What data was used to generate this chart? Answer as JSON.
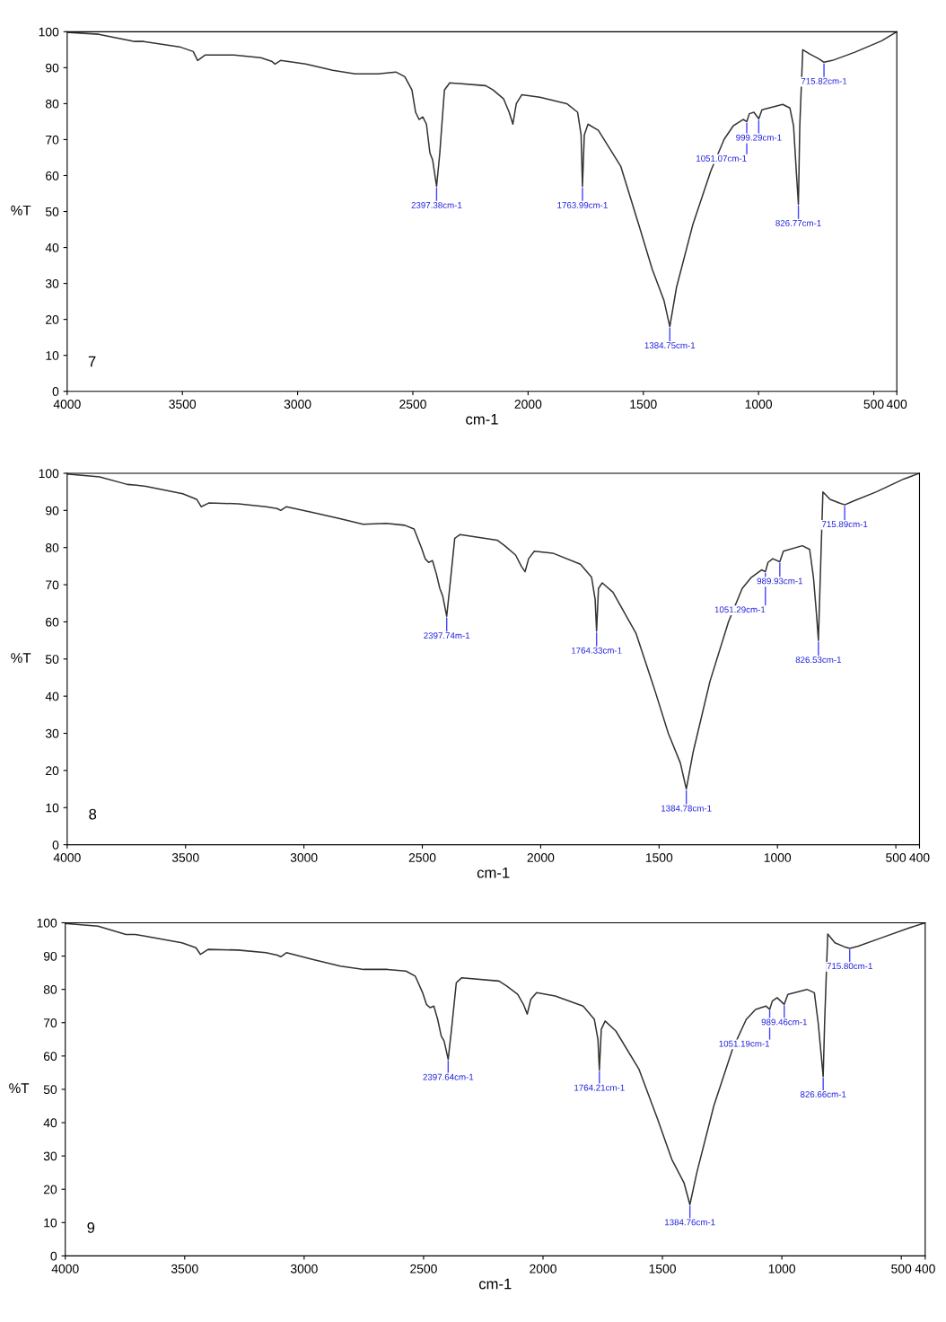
{
  "chart_data": [
    {
      "type": "line",
      "xlabel": "cm-1",
      "ylabel": "%T",
      "xlim": [
        4000,
        400
      ],
      "ylim": [
        0,
        100
      ],
      "xticks": [
        4000,
        3500,
        3000,
        2500,
        2000,
        1500,
        1000,
        500,
        400
      ],
      "yticks": [
        0,
        10,
        20,
        30,
        40,
        50,
        60,
        70,
        80,
        90,
        100
      ],
      "grid": false,
      "legend": false,
      "series": [
        {
          "color": "#333333",
          "x": [
            4000,
            3863,
            3746,
            3707,
            3668,
            3512,
            3453,
            3434,
            3402,
            3277,
            3160,
            3113,
            3098,
            3074,
            2965,
            2848,
            2750,
            2652,
            2574,
            2535,
            2504,
            2488,
            2473,
            2457,
            2441,
            2426,
            2414,
            2397,
            2383,
            2363,
            2340,
            2184,
            2152,
            2106,
            2082,
            2066,
            2051,
            2027,
            1949,
            1832,
            1785,
            1770,
            1764,
            1756,
            1740,
            1695,
            1598,
            1520,
            1461,
            1410,
            1385,
            1356,
            1285,
            1207,
            1149,
            1110,
            1067,
            1051,
            1040,
            1020,
            999,
            985,
            895,
            864,
            848,
            835,
            827,
            821,
            808,
            778,
            739,
            716,
            680,
            582,
            465,
            400
          ],
          "values": [
            99.8,
            99.3,
            97.8,
            97.3,
            97.3,
            95.8,
            94.5,
            92.0,
            93.5,
            93.5,
            92.8,
            91.8,
            91.0,
            92.0,
            91.0,
            89.3,
            88.3,
            88.3,
            88.8,
            87.5,
            83.8,
            77.6,
            75.6,
            76.3,
            74.3,
            66.3,
            64.3,
            57,
            66.3,
            83.8,
            85.8,
            85.0,
            83.8,
            81.3,
            77.6,
            74.3,
            80.0,
            82.5,
            81.8,
            80.0,
            77.6,
            71.3,
            57,
            71.3,
            74.3,
            72.6,
            62.6,
            46.4,
            33.9,
            25.2,
            18,
            28.9,
            46.4,
            61.3,
            70.1,
            73.8,
            75.6,
            75.0,
            77.2,
            77.6,
            75.8,
            78.3,
            79.8,
            78.8,
            73.8,
            60,
            52,
            73.8,
            95.0,
            93.8,
            92.5,
            91.5,
            92.0,
            94.3,
            97.5,
            100
          ]
        }
      ],
      "annotations": [
        {
          "text": "2397.38cm-1",
          "x": 2397,
          "y": 57
        },
        {
          "text": "1763.99cm-1",
          "x": 1764,
          "y": 57
        },
        {
          "text": "1384.75cm-1",
          "x": 1385,
          "y": 18
        },
        {
          "text": "1051.07cm-1",
          "x": 1051,
          "y": 75
        },
        {
          "text": "999.29cm-1",
          "x": 999,
          "y": 75.8
        },
        {
          "text": "826.77cm-1",
          "x": 827,
          "y": 52
        },
        {
          "text": "715.82cm-1",
          "x": 716,
          "y": 91.5
        },
        "7"
      ]
    },
    {
      "type": "line",
      "xlabel": "cm-1",
      "ylabel": "%T",
      "xlim": [
        4000,
        400
      ],
      "ylim": [
        0,
        100
      ],
      "xticks": [
        4000,
        3500,
        3000,
        2500,
        2000,
        1500,
        1000,
        500,
        400
      ],
      "yticks": [
        0,
        10,
        20,
        30,
        40,
        50,
        60,
        70,
        80,
        90,
        100
      ],
      "grid": false,
      "legend": false,
      "series": [
        {
          "color": "#333333",
          "x": [
            4000,
            3863,
            3746,
            3707,
            3668,
            3512,
            3453,
            3434,
            3402,
            3277,
            3160,
            3113,
            3098,
            3074,
            2965,
            2848,
            2750,
            2652,
            2574,
            2535,
            2504,
            2488,
            2473,
            2457,
            2441,
            2426,
            2414,
            2397,
            2383,
            2363,
            2340,
            2184,
            2152,
            2106,
            2082,
            2066,
            2051,
            2027,
            1949,
            1832,
            1785,
            1770,
            1764,
            1756,
            1740,
            1695,
            1598,
            1520,
            1461,
            1410,
            1385,
            1356,
            1285,
            1207,
            1149,
            1110,
            1067,
            1051,
            1040,
            1020,
            990,
            975,
            895,
            864,
            848,
            835,
            827,
            821,
            808,
            778,
            739,
            716,
            680,
            582,
            465,
            400
          ],
          "values": [
            99.8,
            99,
            97,
            96.8,
            96.5,
            94.5,
            93,
            91,
            92,
            91.8,
            91,
            90.5,
            90,
            91,
            89.5,
            87.8,
            86.3,
            86.5,
            86,
            85,
            80,
            77,
            76.0,
            76.5,
            73,
            69,
            67,
            61.5,
            70,
            82.5,
            83.5,
            82,
            80.5,
            78,
            75,
            73.5,
            77,
            79,
            78.5,
            75.5,
            72,
            66,
            57.5,
            69,
            70.5,
            68,
            57,
            42,
            30,
            22,
            15,
            25,
            44,
            60,
            69,
            72,
            74,
            73.5,
            76,
            77,
            76.2,
            79,
            80.5,
            79.5,
            72,
            62,
            55,
            68,
            95.0,
            93,
            92,
            91.5,
            92.5,
            95,
            98.5,
            100
          ]
        }
      ],
      "annotations": [
        {
          "text": "2397.74m-1",
          "x": 2397,
          "y": 61.5
        },
        {
          "text": "1764.33cm-1",
          "x": 1764,
          "y": 57.5
        },
        {
          "text": "1384.78cm-1",
          "x": 1385,
          "y": 15
        },
        {
          "text": "1051.29cm-1",
          "x": 1051,
          "y": 73.5
        },
        {
          "text": "989.93cm-1",
          "x": 990,
          "y": 76.2
        },
        {
          "text": "826.53cm-1",
          "x": 827,
          "y": 55
        },
        {
          "text": "715.89cm-1",
          "x": 716,
          "y": 91.5
        },
        "8"
      ]
    },
    {
      "type": "line",
      "xlabel": "cm-1",
      "ylabel": "%T",
      "xlim": [
        4000,
        400
      ],
      "ylim": [
        0,
        100
      ],
      "xticks": [
        4000,
        3500,
        3000,
        2500,
        2000,
        1500,
        1000,
        500,
        400
      ],
      "yticks": [
        0,
        10,
        20,
        30,
        40,
        50,
        60,
        70,
        80,
        90,
        100
      ],
      "grid": false,
      "legend": false,
      "series": [
        {
          "color": "#333333",
          "x": [
            4000,
            3863,
            3746,
            3707,
            3668,
            3512,
            3453,
            3434,
            3402,
            3277,
            3160,
            3113,
            3098,
            3074,
            2965,
            2848,
            2750,
            2652,
            2574,
            2535,
            2504,
            2488,
            2473,
            2457,
            2441,
            2426,
            2414,
            2397,
            2383,
            2363,
            2340,
            2184,
            2152,
            2106,
            2082,
            2066,
            2051,
            2027,
            1949,
            1832,
            1785,
            1770,
            1764,
            1756,
            1740,
            1695,
            1598,
            1520,
            1461,
            1410,
            1385,
            1356,
            1285,
            1207,
            1149,
            1110,
            1067,
            1051,
            1040,
            1020,
            990,
            975,
            895,
            864,
            848,
            835,
            827,
            821,
            808,
            778,
            739,
            716,
            680,
            582,
            465,
            400
          ],
          "values": [
            99.8,
            99,
            96.5,
            96.5,
            96,
            94,
            92.5,
            90.5,
            92,
            91.8,
            91,
            90.3,
            89.8,
            91,
            89,
            87,
            86,
            86,
            85.5,
            84,
            79,
            75.5,
            74.5,
            75,
            71,
            66,
            64.5,
            59,
            68,
            82,
            83.5,
            82.5,
            81,
            78.5,
            75.5,
            72.6,
            77,
            79,
            78,
            75,
            71,
            65,
            55.8,
            68,
            70.5,
            67.5,
            56,
            41,
            29,
            22,
            15.4,
            25,
            45,
            62,
            71,
            74,
            75,
            74,
            76.5,
            77.5,
            75.5,
            78.5,
            80,
            79,
            70,
            60,
            53.8,
            70,
            96.6,
            94,
            92.8,
            92.3,
            93,
            95.5,
            98.5,
            100
          ]
        }
      ],
      "annotations": [
        {
          "text": "2397.64cm-1",
          "x": 2397,
          "y": 59
        },
        {
          "text": "1764.21cm-1",
          "x": 1764,
          "y": 55.8
        },
        {
          "text": "1384.76cm-1",
          "x": 1385,
          "y": 15.4
        },
        {
          "text": "1051.19cm-1",
          "x": 1051,
          "y": 74
        },
        {
          "text": "989.46cm-1",
          "x": 990,
          "y": 75.5
        },
        {
          "text": "826.66cm-1",
          "x": 827,
          "y": 53.8
        },
        {
          "text": "715.80cm-1",
          "x": 716,
          "y": 92.3
        },
        "9"
      ]
    }
  ]
}
